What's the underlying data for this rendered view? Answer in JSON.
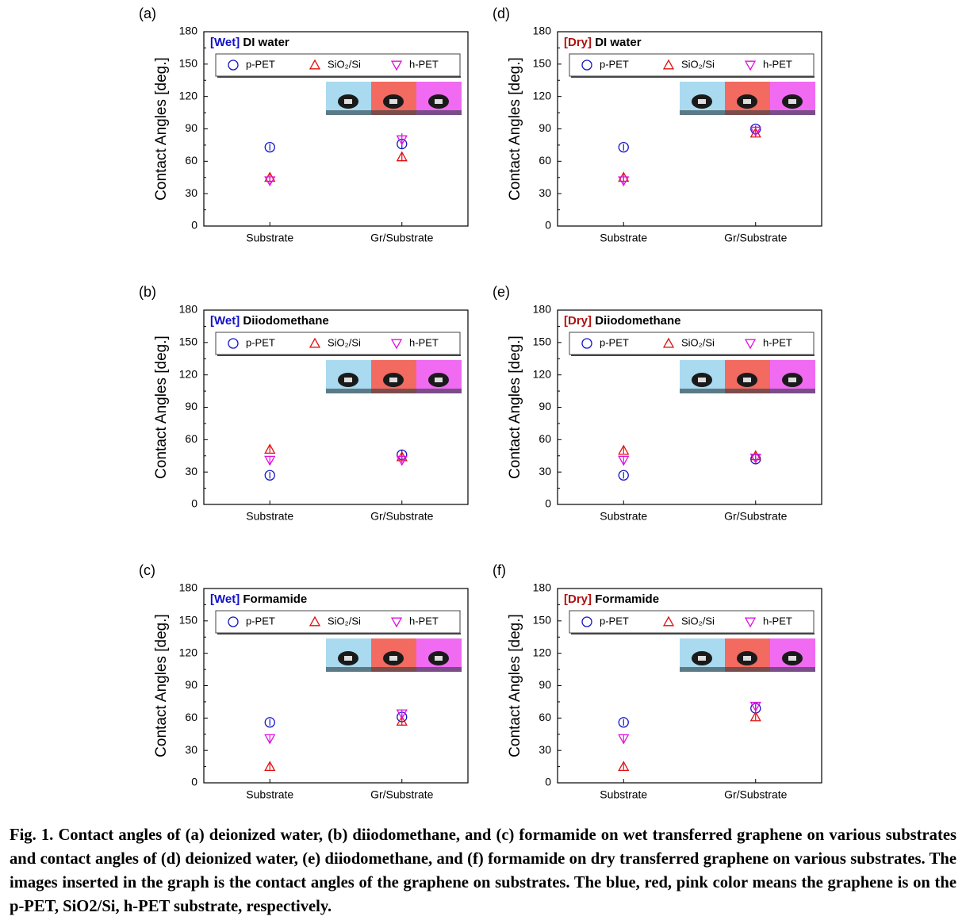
{
  "chart_data": [
    {
      "type": "scatter",
      "panel": "(a)",
      "title_tag": "[Wet]",
      "tag_color": "#1010c8",
      "title": "DI water",
      "ylabel": "Contact Angles [deg.]",
      "categories": [
        "Substrate",
        "Gr/Substrate"
      ],
      "ylim": [
        0,
        180
      ],
      "yticks": [
        0,
        30,
        60,
        90,
        120,
        150,
        180
      ],
      "series": [
        {
          "name": "p-PET",
          "color": "#1414c8",
          "marker": "circle",
          "values": [
            73,
            76
          ],
          "errors": [
            3,
            4
          ]
        },
        {
          "name": "SiO₂/Si",
          "color": "#e01010",
          "marker": "triangle-up",
          "values": [
            45,
            64
          ],
          "errors": [
            3,
            4
          ]
        },
        {
          "name": "h-PET",
          "color": "#e010e0",
          "marker": "triangle-down",
          "values": [
            42,
            80
          ],
          "errors": [
            3,
            6
          ]
        }
      ]
    },
    {
      "type": "scatter",
      "panel": "(b)",
      "title_tag": "[Wet]",
      "tag_color": "#1010c8",
      "title": "Diiodomethane",
      "ylabel": "Contact Angles [deg.]",
      "categories": [
        "Substrate",
        "Gr/Substrate"
      ],
      "ylim": [
        0,
        180
      ],
      "yticks": [
        0,
        30,
        60,
        90,
        120,
        150,
        180
      ],
      "series": [
        {
          "name": "p-PET",
          "color": "#1414c8",
          "marker": "circle",
          "values": [
            27,
            46
          ],
          "errors": [
            3,
            4
          ]
        },
        {
          "name": "SiO₂/Si",
          "color": "#e01010",
          "marker": "triangle-up",
          "values": [
            51,
            44
          ],
          "errors": [
            3,
            3
          ]
        },
        {
          "name": "h-PET",
          "color": "#e010e0",
          "marker": "triangle-down",
          "values": [
            41,
            41
          ],
          "errors": [
            4,
            3
          ]
        }
      ]
    },
    {
      "type": "scatter",
      "panel": "(c)",
      "title_tag": "[Wet]",
      "tag_color": "#1010c8",
      "title": "Formamide",
      "ylabel": "Contact Angles [deg.]",
      "categories": [
        "Substrate",
        "Gr/Substrate"
      ],
      "ylim": [
        0,
        180
      ],
      "yticks": [
        0,
        30,
        60,
        90,
        120,
        150,
        180
      ],
      "series": [
        {
          "name": "p-PET",
          "color": "#1414c8",
          "marker": "circle",
          "values": [
            56,
            61
          ],
          "errors": [
            3,
            3
          ]
        },
        {
          "name": "SiO₂/Si",
          "color": "#e01010",
          "marker": "triangle-up",
          "values": [
            15,
            57
          ],
          "errors": [
            3,
            4
          ]
        },
        {
          "name": "h-PET",
          "color": "#e010e0",
          "marker": "triangle-down",
          "values": [
            41,
            64
          ],
          "errors": [
            4,
            4
          ]
        }
      ]
    },
    {
      "type": "scatter",
      "panel": "(d)",
      "title_tag": "[Dry]",
      "tag_color": "#b01010",
      "title": "DI water",
      "ylabel": "Contact Angles [deg.]",
      "categories": [
        "Substrate",
        "Gr/Substrate"
      ],
      "ylim": [
        0,
        180
      ],
      "yticks": [
        0,
        30,
        60,
        90,
        120,
        150,
        180
      ],
      "series": [
        {
          "name": "p-PET",
          "color": "#1414c8",
          "marker": "circle",
          "values": [
            73,
            90
          ],
          "errors": [
            3,
            3
          ]
        },
        {
          "name": "SiO₂/Si",
          "color": "#e01010",
          "marker": "triangle-up",
          "values": [
            45,
            86
          ],
          "errors": [
            3,
            3
          ]
        },
        {
          "name": "h-PET",
          "color": "#e010e0",
          "marker": "triangle-down",
          "values": [
            42,
            88
          ],
          "errors": [
            3,
            3
          ]
        }
      ]
    },
    {
      "type": "scatter",
      "panel": "(e)",
      "title_tag": "[Dry]",
      "tag_color": "#b01010",
      "title": "Diiodomethane",
      "ylabel": "Contact Angles [deg.]",
      "categories": [
        "Substrate",
        "Gr/Substrate"
      ],
      "ylim": [
        0,
        180
      ],
      "yticks": [
        0,
        30,
        60,
        90,
        120,
        150,
        180
      ],
      "series": [
        {
          "name": "p-PET",
          "color": "#1414c8",
          "marker": "circle",
          "values": [
            27,
            42
          ],
          "errors": [
            3,
            2
          ]
        },
        {
          "name": "SiO₂/Si",
          "color": "#e01010",
          "marker": "triangle-up",
          "values": [
            50,
            45
          ],
          "errors": [
            3,
            3
          ]
        },
        {
          "name": "h-PET",
          "color": "#e010e0",
          "marker": "triangle-down",
          "values": [
            41,
            43
          ],
          "errors": [
            4,
            3
          ]
        }
      ]
    },
    {
      "type": "scatter",
      "panel": "(f)",
      "title_tag": "[Dry]",
      "tag_color": "#b01010",
      "title": "Formamide",
      "ylabel": "Contact Angles [deg.]",
      "categories": [
        "Substrate",
        "Gr/Substrate"
      ],
      "ylim": [
        0,
        180
      ],
      "yticks": [
        0,
        30,
        60,
        90,
        120,
        150,
        180
      ],
      "series": [
        {
          "name": "p-PET",
          "color": "#1414c8",
          "marker": "circle",
          "values": [
            56,
            69
          ],
          "errors": [
            3,
            3
          ]
        },
        {
          "name": "SiO₂/Si",
          "color": "#e01010",
          "marker": "triangle-up",
          "values": [
            15,
            61
          ],
          "errors": [
            3,
            3
          ]
        },
        {
          "name": "h-PET",
          "color": "#e010e0",
          "marker": "triangle-down",
          "values": [
            41,
            71
          ],
          "errors": [
            4,
            3
          ]
        }
      ]
    }
  ],
  "caption": "Fig. 1. Contact angles of (a) deionized water, (b) diiodomethane, and (c) formamide on wet transferred graphene on various substrates and contact angles of (d) deionized water, (e) diiodomethane, and (f) formamide on dry transferred graphene on various substrates. The images inserted in the graph is the contact angles of the graphene on substrates. The blue, red, pink color means the graphene is on the p-PET, SiO2/Si, h-PET substrate, respectively."
}
